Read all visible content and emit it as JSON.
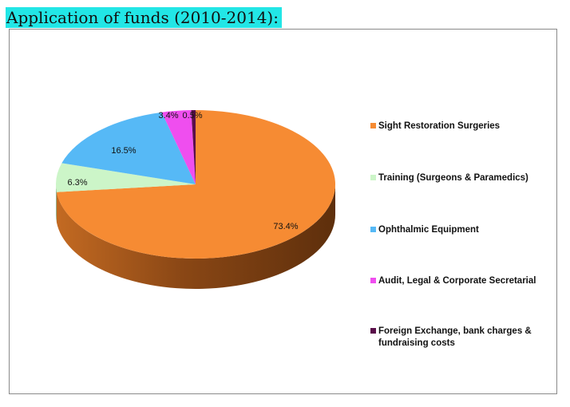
{
  "header": {
    "title": "Application of funds (2010-2014):"
  },
  "chart_data": {
    "type": "pie",
    "title": "",
    "slices": [
      {
        "label": "Sight Restoration Surgeries",
        "value": 73.4,
        "value_label": "73.4%",
        "color": "#f68b33",
        "dark": "#6b3810"
      },
      {
        "label": "Training (Surgeons & Paramedics)",
        "value": 6.3,
        "value_label": "6.3%",
        "color": "#ccf5c8",
        "dark": "#8fb08a"
      },
      {
        "label": "Ophthalmic Equipment",
        "value": 16.5,
        "value_label": "16.5%",
        "color": "#56b9f6",
        "dark": "#2a6f9c"
      },
      {
        "label": "Audit, Legal & Corporate Secretarial",
        "value": 3.4,
        "value_label": "3.4%",
        "color": "#ef4eef",
        "dark": "#8a2a8a"
      },
      {
        "label": "Foreign Exchange, bank charges & fundraising costs",
        "value": 0.5,
        "value_label": "0.5%",
        "color": "#5a0f4a",
        "dark": "#2e0726"
      }
    ],
    "legend": [
      {
        "lines": [
          "Sight Restoration Surgeries"
        ],
        "color": "#f68b33"
      },
      {
        "lines": [
          "Training (Surgeons & Paramedics)"
        ],
        "color": "#ccf5c8"
      },
      {
        "lines": [
          "Ophthalmic Equipment"
        ],
        "color": "#56b9f6"
      },
      {
        "lines": [
          "Audit, Legal & Corporate Secretarial"
        ],
        "color": "#ef4eef"
      },
      {
        "lines": [
          "Foreign Exchange, bank charges &",
          "fundraising costs"
        ],
        "color": "#5a0f4a"
      }
    ],
    "legend_position": "right",
    "style": "3d-tilted"
  }
}
